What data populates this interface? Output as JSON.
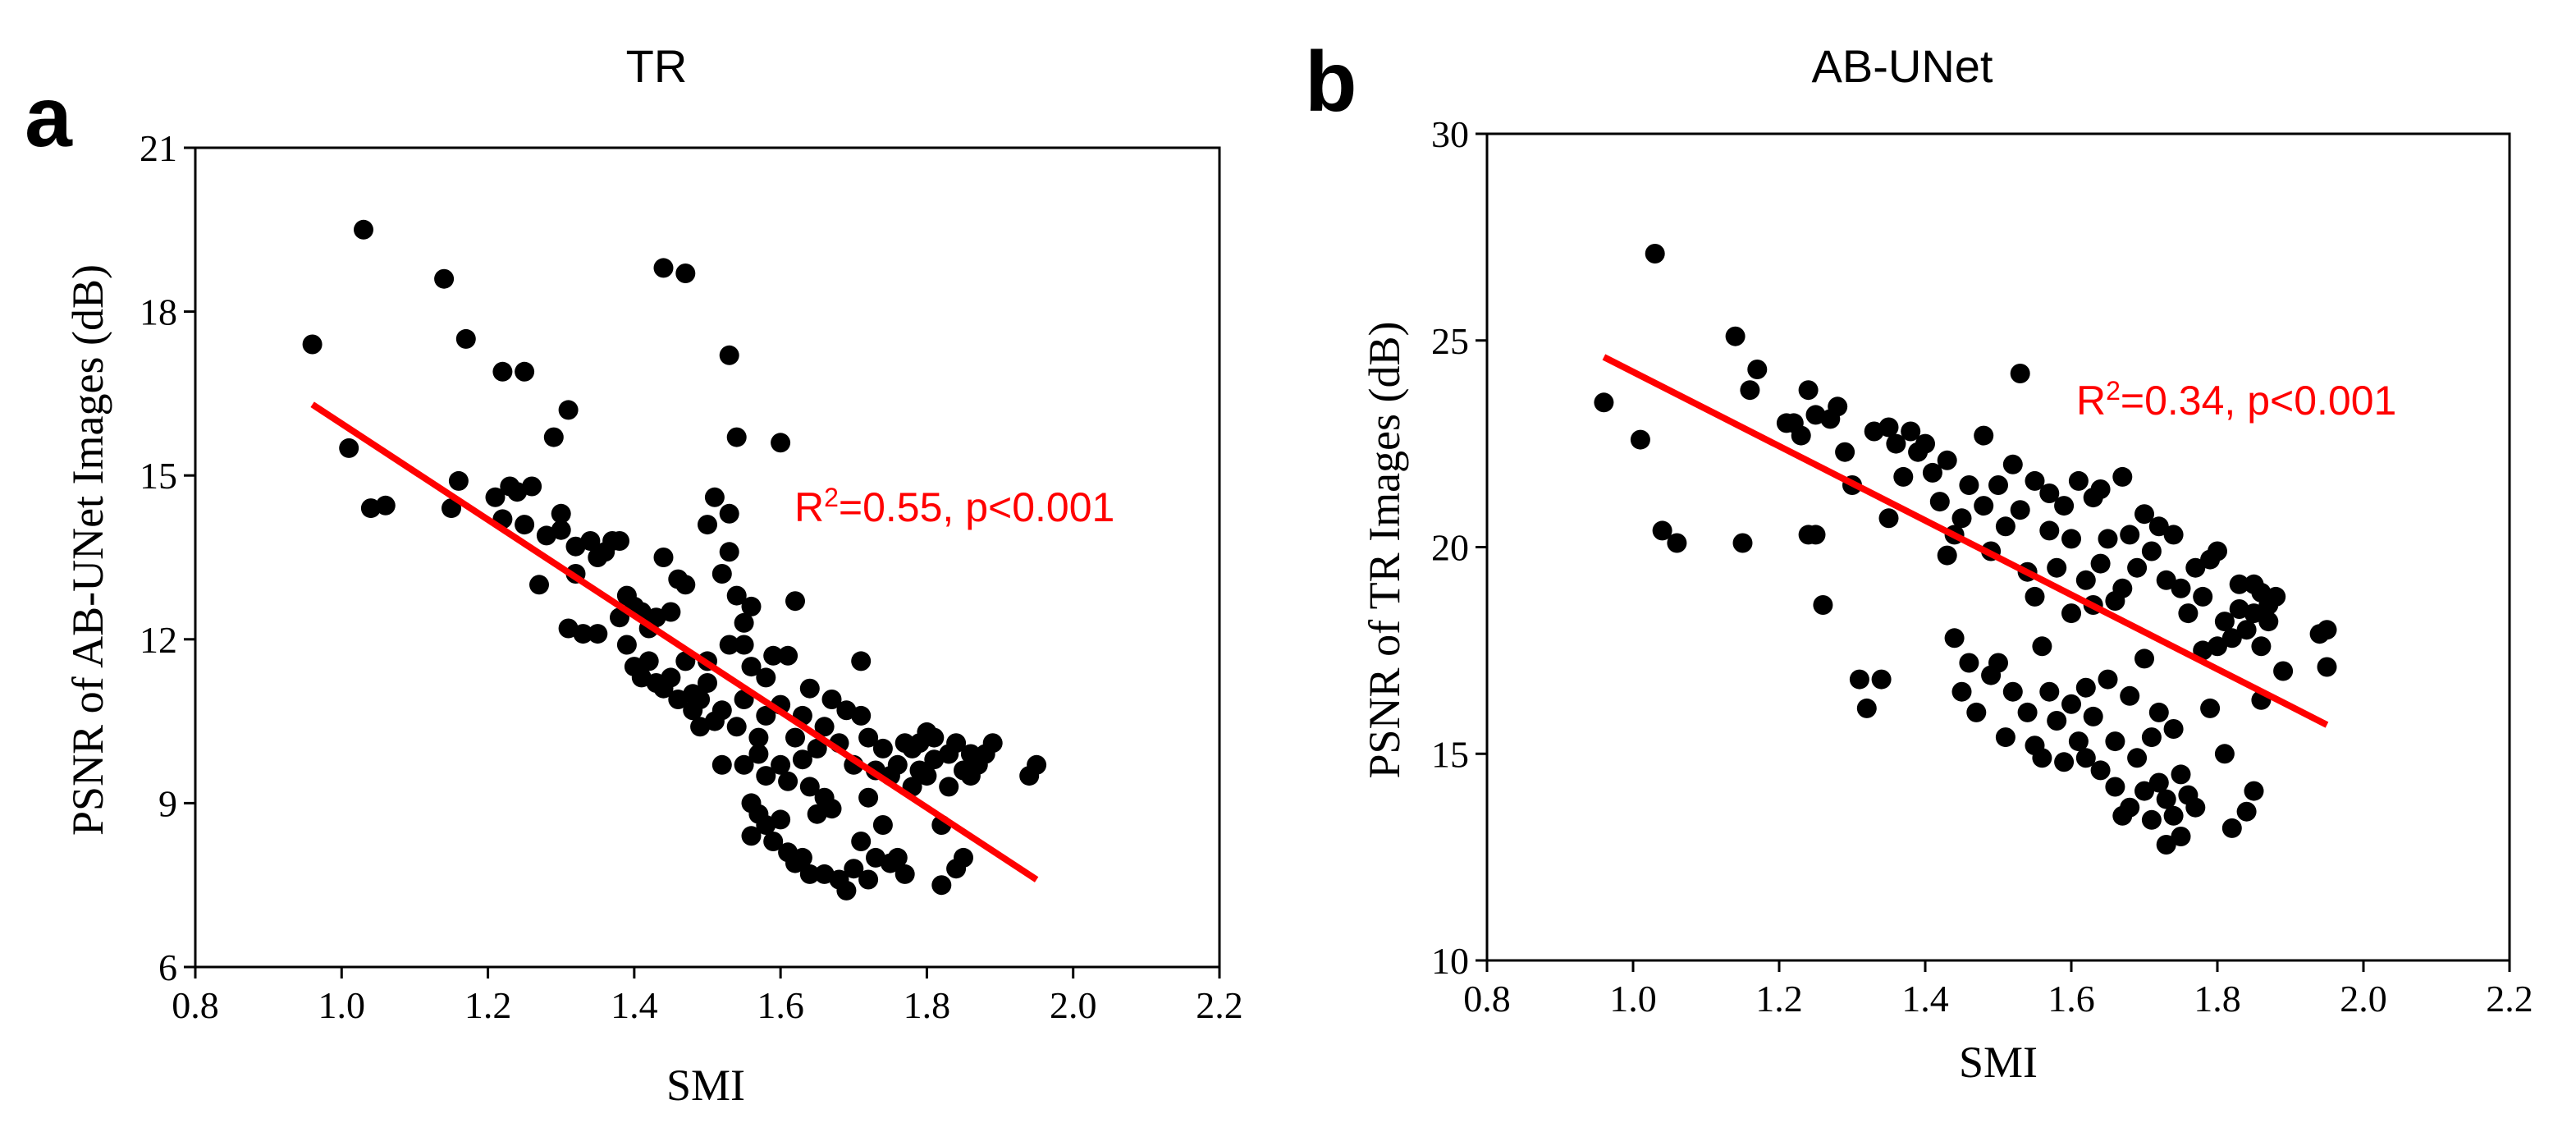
{
  "chart_data": [
    {
      "type": "scatter",
      "panel": "a",
      "title": "TR",
      "xlabel": "SMI",
      "ylabel": "PSNR of AB-UNet Images (dB)",
      "xlim": [
        0.8,
        2.2
      ],
      "ylim": [
        6,
        21
      ],
      "xticks": [
        "0.8",
        "1.0",
        "1.2",
        "1.4",
        "1.6",
        "1.8",
        "2.0",
        "2.2"
      ],
      "yticks": [
        "6",
        "9",
        "12",
        "15",
        "18",
        "21"
      ],
      "annotation": {
        "r2_label": "R",
        "r2_sup": "2",
        "rest": "=0.55, p<0.001"
      },
      "colors": {
        "points": "#000000",
        "fit": "#ff0000"
      },
      "fit_line": {
        "x": [
          0.96,
          1.95
        ],
        "y": [
          16.3,
          7.6
        ]
      },
      "points": [
        [
          0.96,
          17.4
        ],
        [
          1.01,
          15.5
        ],
        [
          1.03,
          19.5
        ],
        [
          1.04,
          14.4
        ],
        [
          1.06,
          14.45
        ],
        [
          1.14,
          18.6
        ],
        [
          1.15,
          14.4
        ],
        [
          1.16,
          14.9
        ],
        [
          1.17,
          17.5
        ],
        [
          1.21,
          14.6
        ],
        [
          1.22,
          16.9
        ],
        [
          1.22,
          14.2
        ],
        [
          1.23,
          14.8
        ],
        [
          1.24,
          14.7
        ],
        [
          1.25,
          14.1
        ],
        [
          1.25,
          16.9
        ],
        [
          1.26,
          14.8
        ],
        [
          1.27,
          13.0
        ],
        [
          1.28,
          13.9
        ],
        [
          1.29,
          15.7
        ],
        [
          1.3,
          14.0
        ],
        [
          1.3,
          14.3
        ],
        [
          1.31,
          16.2
        ],
        [
          1.31,
          12.2
        ],
        [
          1.32,
          13.7
        ],
        [
          1.32,
          13.2
        ],
        [
          1.33,
          12.1
        ],
        [
          1.34,
          13.8
        ],
        [
          1.35,
          12.1
        ],
        [
          1.35,
          13.5
        ],
        [
          1.36,
          13.6
        ],
        [
          1.37,
          13.8
        ],
        [
          1.38,
          13.8
        ],
        [
          1.38,
          12.4
        ],
        [
          1.39,
          11.9
        ],
        [
          1.39,
          12.8
        ],
        [
          1.4,
          11.5
        ],
        [
          1.4,
          12.6
        ],
        [
          1.41,
          12.5
        ],
        [
          1.41,
          11.3
        ],
        [
          1.42,
          11.6
        ],
        [
          1.42,
          12.2
        ],
        [
          1.43,
          11.2
        ],
        [
          1.43,
          12.4
        ],
        [
          1.44,
          11.1
        ],
        [
          1.44,
          13.5
        ],
        [
          1.44,
          18.8
        ],
        [
          1.45,
          12.5
        ],
        [
          1.45,
          11.3
        ],
        [
          1.46,
          13.1
        ],
        [
          1.46,
          10.9
        ],
        [
          1.47,
          13.0
        ],
        [
          1.47,
          18.7
        ],
        [
          1.47,
          11.6
        ],
        [
          1.48,
          10.7
        ],
        [
          1.48,
          11.0
        ],
        [
          1.49,
          10.9
        ],
        [
          1.49,
          10.4
        ],
        [
          1.5,
          11.2
        ],
        [
          1.5,
          14.1
        ],
        [
          1.5,
          11.6
        ],
        [
          1.51,
          10.5
        ],
        [
          1.51,
          14.6
        ],
        [
          1.52,
          13.2
        ],
        [
          1.52,
          10.7
        ],
        [
          1.52,
          9.7
        ],
        [
          1.53,
          14.3
        ],
        [
          1.53,
          13.6
        ],
        [
          1.53,
          11.9
        ],
        [
          1.53,
          17.2
        ],
        [
          1.54,
          12.8
        ],
        [
          1.54,
          10.4
        ],
        [
          1.54,
          15.7
        ],
        [
          1.55,
          12.3
        ],
        [
          1.55,
          11.9
        ],
        [
          1.55,
          10.9
        ],
        [
          1.55,
          9.7
        ],
        [
          1.56,
          9.0
        ],
        [
          1.56,
          12.6
        ],
        [
          1.56,
          11.5
        ],
        [
          1.56,
          8.4
        ],
        [
          1.57,
          8.8
        ],
        [
          1.57,
          10.2
        ],
        [
          1.57,
          9.9
        ],
        [
          1.58,
          8.6
        ],
        [
          1.58,
          9.5
        ],
        [
          1.58,
          10.6
        ],
        [
          1.58,
          11.3
        ],
        [
          1.59,
          8.3
        ],
        [
          1.59,
          11.7
        ],
        [
          1.6,
          8.7
        ],
        [
          1.6,
          10.8
        ],
        [
          1.6,
          9.7
        ],
        [
          1.6,
          15.6
        ],
        [
          1.61,
          8.1
        ],
        [
          1.61,
          9.4
        ],
        [
          1.61,
          11.7
        ],
        [
          1.62,
          7.9
        ],
        [
          1.62,
          10.2
        ],
        [
          1.62,
          12.7
        ],
        [
          1.63,
          8.0
        ],
        [
          1.63,
          9.8
        ],
        [
          1.63,
          10.6
        ],
        [
          1.64,
          9.3
        ],
        [
          1.64,
          11.1
        ],
        [
          1.64,
          7.7
        ],
        [
          1.65,
          8.8
        ],
        [
          1.65,
          10.0
        ],
        [
          1.66,
          9.1
        ],
        [
          1.66,
          7.7
        ],
        [
          1.66,
          10.4
        ],
        [
          1.67,
          8.9
        ],
        [
          1.67,
          10.9
        ],
        [
          1.68,
          7.6
        ],
        [
          1.68,
          10.1
        ],
        [
          1.69,
          7.4
        ],
        [
          1.69,
          10.7
        ],
        [
          1.7,
          7.8
        ],
        [
          1.7,
          9.7
        ],
        [
          1.71,
          8.3
        ],
        [
          1.71,
          10.6
        ],
        [
          1.71,
          11.6
        ],
        [
          1.72,
          7.6
        ],
        [
          1.72,
          9.1
        ],
        [
          1.72,
          10.2
        ],
        [
          1.73,
          8.0
        ],
        [
          1.73,
          9.6
        ],
        [
          1.74,
          8.6
        ],
        [
          1.74,
          10.0
        ],
        [
          1.75,
          7.9
        ],
        [
          1.75,
          9.5
        ],
        [
          1.76,
          9.7
        ],
        [
          1.76,
          8.0
        ],
        [
          1.77,
          10.1
        ],
        [
          1.77,
          7.7
        ],
        [
          1.78,
          9.3
        ],
        [
          1.78,
          10.0
        ],
        [
          1.79,
          10.1
        ],
        [
          1.79,
          9.6
        ],
        [
          1.8,
          10.3
        ],
        [
          1.8,
          9.5
        ],
        [
          1.81,
          9.8
        ],
        [
          1.81,
          10.2
        ],
        [
          1.82,
          8.6
        ],
        [
          1.82,
          7.5
        ],
        [
          1.83,
          9.9
        ],
        [
          1.83,
          9.3
        ],
        [
          1.84,
          10.1
        ],
        [
          1.84,
          7.8
        ],
        [
          1.85,
          9.6
        ],
        [
          1.85,
          8.0
        ],
        [
          1.86,
          9.9
        ],
        [
          1.86,
          9.5
        ],
        [
          1.87,
          9.7
        ],
        [
          1.88,
          9.9
        ],
        [
          1.89,
          10.1
        ],
        [
          1.94,
          9.5
        ],
        [
          1.95,
          9.7
        ]
      ]
    },
    {
      "type": "scatter",
      "panel": "b",
      "title": "AB-UNet",
      "xlabel": "SMI",
      "ylabel": "PSNR of TR Images (dB)",
      "xlim": [
        0.8,
        2.2
      ],
      "ylim": [
        10,
        30
      ],
      "xticks": [
        "0.8",
        "1.0",
        "1.2",
        "1.4",
        "1.6",
        "1.8",
        "2.0",
        "2.2"
      ],
      "yticks": [
        "10",
        "15",
        "20",
        "25",
        "30"
      ],
      "annotation": {
        "r2_label": "R",
        "r2_sup": "2",
        "rest": "=0.34, p<0.001"
      },
      "colors": {
        "points": "#000000",
        "fit": "#ff0000"
      },
      "fit_line": {
        "x": [
          0.96,
          1.95
        ],
        "y": [
          24.6,
          15.7
        ]
      },
      "points": [
        [
          0.96,
          23.5
        ],
        [
          1.01,
          22.6
        ],
        [
          1.03,
          27.1
        ],
        [
          1.04,
          20.4
        ],
        [
          1.06,
          20.1
        ],
        [
          1.14,
          25.1
        ],
        [
          1.15,
          20.1
        ],
        [
          1.16,
          23.8
        ],
        [
          1.17,
          24.3
        ],
        [
          1.21,
          23.0
        ],
        [
          1.22,
          23.0
        ],
        [
          1.23,
          22.7
        ],
        [
          1.24,
          23.8
        ],
        [
          1.24,
          20.3
        ],
        [
          1.25,
          23.2
        ],
        [
          1.25,
          20.3
        ],
        [
          1.26,
          18.6
        ],
        [
          1.27,
          23.1
        ],
        [
          1.28,
          23.4
        ],
        [
          1.29,
          22.3
        ],
        [
          1.3,
          21.5
        ],
        [
          1.31,
          16.8
        ],
        [
          1.32,
          16.1
        ],
        [
          1.33,
          22.8
        ],
        [
          1.34,
          16.8
        ],
        [
          1.35,
          22.9
        ],
        [
          1.35,
          20.7
        ],
        [
          1.36,
          22.5
        ],
        [
          1.37,
          21.7
        ],
        [
          1.38,
          22.8
        ],
        [
          1.39,
          22.3
        ],
        [
          1.4,
          22.5
        ],
        [
          1.41,
          21.8
        ],
        [
          1.42,
          21.1
        ],
        [
          1.43,
          22.1
        ],
        [
          1.43,
          19.8
        ],
        [
          1.44,
          20.3
        ],
        [
          1.44,
          17.8
        ],
        [
          1.45,
          20.7
        ],
        [
          1.45,
          16.5
        ],
        [
          1.46,
          21.5
        ],
        [
          1.46,
          17.2
        ],
        [
          1.47,
          16.0
        ],
        [
          1.48,
          21.0
        ],
        [
          1.48,
          22.7
        ],
        [
          1.49,
          16.9
        ],
        [
          1.49,
          19.9
        ],
        [
          1.5,
          21.5
        ],
        [
          1.5,
          17.2
        ],
        [
          1.51,
          15.4
        ],
        [
          1.51,
          20.5
        ],
        [
          1.52,
          22.0
        ],
        [
          1.52,
          16.5
        ],
        [
          1.53,
          24.2
        ],
        [
          1.53,
          20.9
        ],
        [
          1.54,
          19.4
        ],
        [
          1.54,
          16.0
        ],
        [
          1.55,
          21.6
        ],
        [
          1.55,
          18.8
        ],
        [
          1.55,
          15.2
        ],
        [
          1.56,
          17.6
        ],
        [
          1.56,
          14.9
        ],
        [
          1.57,
          21.3
        ],
        [
          1.57,
          16.5
        ],
        [
          1.57,
          20.4
        ],
        [
          1.58,
          19.5
        ],
        [
          1.58,
          15.8
        ],
        [
          1.59,
          21.0
        ],
        [
          1.59,
          14.8
        ],
        [
          1.6,
          20.2
        ],
        [
          1.6,
          16.2
        ],
        [
          1.6,
          18.4
        ],
        [
          1.61,
          21.6
        ],
        [
          1.61,
          15.3
        ],
        [
          1.62,
          19.2
        ],
        [
          1.62,
          16.6
        ],
        [
          1.62,
          14.9
        ],
        [
          1.63,
          21.2
        ],
        [
          1.63,
          18.6
        ],
        [
          1.63,
          15.9
        ],
        [
          1.64,
          19.6
        ],
        [
          1.64,
          14.6
        ],
        [
          1.64,
          21.4
        ],
        [
          1.65,
          20.2
        ],
        [
          1.65,
          16.8
        ],
        [
          1.66,
          18.7
        ],
        [
          1.66,
          15.3
        ],
        [
          1.66,
          14.2
        ],
        [
          1.67,
          21.7
        ],
        [
          1.67,
          19.0
        ],
        [
          1.67,
          13.5
        ],
        [
          1.68,
          20.3
        ],
        [
          1.68,
          16.4
        ],
        [
          1.68,
          13.7
        ],
        [
          1.69,
          19.5
        ],
        [
          1.69,
          14.9
        ],
        [
          1.7,
          20.8
        ],
        [
          1.7,
          17.3
        ],
        [
          1.7,
          14.1
        ],
        [
          1.71,
          19.9
        ],
        [
          1.71,
          15.4
        ],
        [
          1.71,
          13.4
        ],
        [
          1.72,
          20.5
        ],
        [
          1.72,
          16.0
        ],
        [
          1.72,
          14.3
        ],
        [
          1.73,
          19.2
        ],
        [
          1.73,
          12.8
        ],
        [
          1.73,
          13.9
        ],
        [
          1.74,
          20.3
        ],
        [
          1.74,
          15.6
        ],
        [
          1.74,
          13.5
        ],
        [
          1.75,
          19.0
        ],
        [
          1.75,
          14.5
        ],
        [
          1.75,
          13.0
        ],
        [
          1.76,
          18.4
        ],
        [
          1.76,
          14.0
        ],
        [
          1.77,
          19.5
        ],
        [
          1.77,
          13.7
        ],
        [
          1.78,
          18.8
        ],
        [
          1.78,
          17.5
        ],
        [
          1.79,
          19.7
        ],
        [
          1.79,
          16.1
        ],
        [
          1.8,
          19.9
        ],
        [
          1.8,
          17.6
        ],
        [
          1.81,
          18.2
        ],
        [
          1.81,
          15.0
        ],
        [
          1.82,
          17.8
        ],
        [
          1.82,
          13.2
        ],
        [
          1.83,
          19.1
        ],
        [
          1.83,
          18.5
        ],
        [
          1.84,
          18.0
        ],
        [
          1.84,
          13.6
        ],
        [
          1.85,
          19.1
        ],
        [
          1.85,
          18.4
        ],
        [
          1.85,
          14.1
        ],
        [
          1.86,
          18.9
        ],
        [
          1.86,
          17.6
        ],
        [
          1.86,
          16.3
        ],
        [
          1.87,
          18.6
        ],
        [
          1.87,
          18.2
        ],
        [
          1.88,
          18.8
        ],
        [
          1.89,
          17.0
        ],
        [
          1.94,
          17.9
        ],
        [
          1.95,
          17.1
        ],
        [
          1.95,
          18.0
        ]
      ]
    }
  ]
}
